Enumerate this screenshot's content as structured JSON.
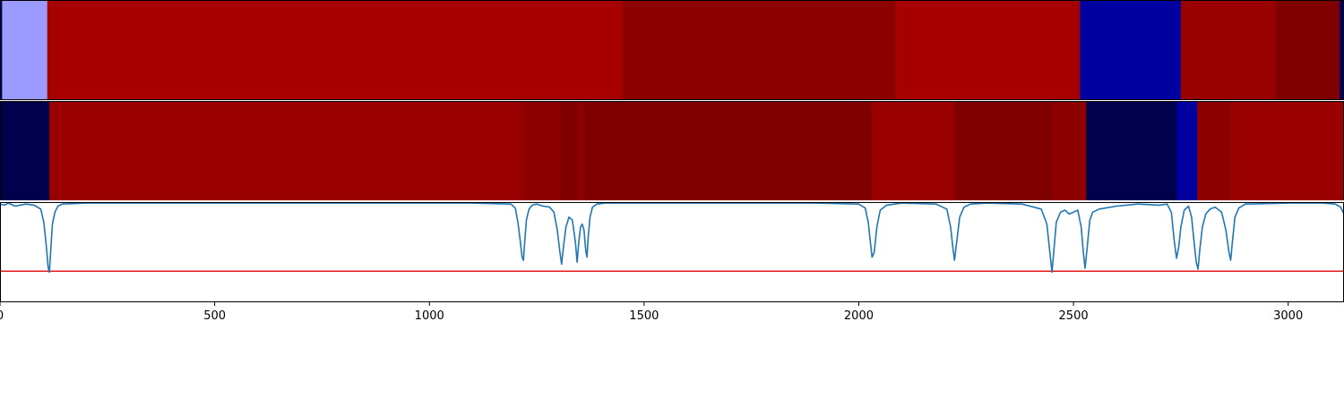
{
  "chart_data": {
    "type": "heatmap",
    "title": "",
    "xlabel": "",
    "ylabel": "",
    "xlim": [
      0,
      3130
    ],
    "x_ticks": [
      0,
      500,
      1000,
      1500,
      2000,
      2500,
      3000
    ],
    "x_tick_labels": [
      "0",
      "500",
      "1000",
      "1500",
      "2000",
      "2500",
      "3000"
    ],
    "grid": false,
    "legend": "none",
    "tracks": [
      {
        "type": "heatmap-strip",
        "segments": [
          {
            "start": 0,
            "end": 5,
            "color": "#000066"
          },
          {
            "start": 5,
            "end": 110,
            "color": "#9a9aff"
          },
          {
            "start": 110,
            "end": 1450,
            "color": "#a60000"
          },
          {
            "start": 1450,
            "end": 2085,
            "color": "#8c0000"
          },
          {
            "start": 2085,
            "end": 2515,
            "color": "#a60000"
          },
          {
            "start": 2515,
            "end": 2750,
            "color": "#0000a0"
          },
          {
            "start": 2750,
            "end": 2970,
            "color": "#990000"
          },
          {
            "start": 2970,
            "end": 3120,
            "color": "#800000"
          },
          {
            "start": 3120,
            "end": 3130,
            "color": "#000066"
          }
        ]
      },
      {
        "type": "heatmap-strip",
        "segments": [
          {
            "start": 0,
            "end": 115,
            "color": "#00004c"
          },
          {
            "start": 115,
            "end": 1218,
            "color": "#9a0000"
          },
          {
            "start": 1218,
            "end": 1305,
            "color": "#8c0000"
          },
          {
            "start": 1305,
            "end": 1345,
            "color": "#800000"
          },
          {
            "start": 1345,
            "end": 1362,
            "color": "#8c0000"
          },
          {
            "start": 1362,
            "end": 2030,
            "color": "#800000"
          },
          {
            "start": 2030,
            "end": 2222,
            "color": "#9a0000"
          },
          {
            "start": 2222,
            "end": 2450,
            "color": "#800000"
          },
          {
            "start": 2450,
            "end": 2530,
            "color": "#8c0000"
          },
          {
            "start": 2530,
            "end": 2740,
            "color": "#00004c"
          },
          {
            "start": 2740,
            "end": 2788,
            "color": "#0000a0"
          },
          {
            "start": 2788,
            "end": 2865,
            "color": "#8c0000"
          },
          {
            "start": 2865,
            "end": 3130,
            "color": "#9a0000"
          }
        ]
      },
      {
        "type": "line",
        "ylim": [
          0,
          1
        ],
        "threshold": 0.31,
        "line_color": "#1f77b4",
        "threshold_color": "#e41a1c",
        "x": [
          0,
          10,
          20,
          35,
          60,
          80,
          95,
          102,
          108,
          112,
          115,
          118,
          122,
          128,
          135,
          145,
          200,
          300,
          500,
          700,
          900,
          1100,
          1190,
          1200,
          1206,
          1212,
          1216,
          1219,
          1222,
          1226,
          1232,
          1240,
          1250,
          1265,
          1280,
          1290,
          1298,
          1304,
          1308,
          1312,
          1318,
          1325,
          1333,
          1340,
          1344,
          1348,
          1352,
          1356,
          1360,
          1364,
          1367,
          1370,
          1374,
          1380,
          1390,
          1410,
          1500,
          1700,
          1900,
          2000,
          2015,
          2022,
          2027,
          2031,
          2036,
          2042,
          2050,
          2065,
          2100,
          2180,
          2205,
          2214,
          2219,
          2223,
          2228,
          2235,
          2245,
          2260,
          2300,
          2380,
          2425,
          2438,
          2445,
          2450,
          2455,
          2460,
          2470,
          2480,
          2490,
          2500,
          2510,
          2518,
          2523,
          2527,
          2532,
          2538,
          2545,
          2560,
          2600,
          2650,
          2700,
          2718,
          2728,
          2735,
          2740,
          2745,
          2750,
          2758,
          2768,
          2775,
          2781,
          2786,
          2790,
          2794,
          2800,
          2808,
          2818,
          2830,
          2845,
          2855,
          2862,
          2866,
          2870,
          2876,
          2885,
          2900,
          3000,
          3080,
          3110,
          3122,
          3130
        ],
        "y": [
          0.98,
          0.97,
          0.99,
          0.96,
          0.98,
          0.97,
          0.93,
          0.8,
          0.55,
          0.35,
          0.3,
          0.5,
          0.78,
          0.9,
          0.96,
          0.98,
          0.99,
          0.99,
          0.99,
          0.99,
          0.99,
          0.99,
          0.98,
          0.94,
          0.8,
          0.6,
          0.45,
          0.42,
          0.6,
          0.82,
          0.93,
          0.97,
          0.98,
          0.96,
          0.95,
          0.9,
          0.72,
          0.5,
          0.38,
          0.55,
          0.75,
          0.85,
          0.82,
          0.6,
          0.4,
          0.6,
          0.75,
          0.78,
          0.72,
          0.52,
          0.45,
          0.65,
          0.85,
          0.95,
          0.98,
          0.99,
          0.99,
          0.99,
          0.99,
          0.98,
          0.94,
          0.8,
          0.6,
          0.45,
          0.5,
          0.75,
          0.92,
          0.97,
          0.99,
          0.98,
          0.93,
          0.75,
          0.55,
          0.42,
          0.6,
          0.85,
          0.95,
          0.98,
          0.99,
          0.98,
          0.93,
          0.78,
          0.5,
          0.3,
          0.55,
          0.8,
          0.9,
          0.92,
          0.88,
          0.9,
          0.92,
          0.75,
          0.5,
          0.34,
          0.55,
          0.82,
          0.9,
          0.93,
          0.96,
          0.98,
          0.97,
          0.98,
          0.9,
          0.6,
          0.44,
          0.55,
          0.75,
          0.92,
          0.96,
          0.85,
          0.6,
          0.4,
          0.33,
          0.52,
          0.75,
          0.88,
          0.93,
          0.95,
          0.9,
          0.72,
          0.5,
          0.42,
          0.6,
          0.85,
          0.94,
          0.98,
          0.99,
          0.99,
          0.98,
          0.95,
          0.88
        ]
      }
    ]
  }
}
